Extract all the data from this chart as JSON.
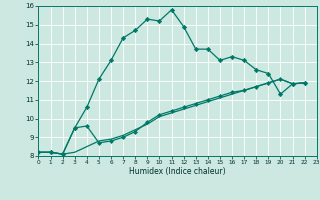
{
  "xlabel": "Humidex (Indice chaleur)",
  "xlim": [
    0,
    23
  ],
  "ylim": [
    8,
    16
  ],
  "xticks": [
    0,
    1,
    2,
    3,
    4,
    5,
    6,
    7,
    8,
    9,
    10,
    11,
    12,
    13,
    14,
    15,
    16,
    17,
    18,
    19,
    20,
    21,
    22,
    23
  ],
  "yticks": [
    8,
    9,
    10,
    11,
    12,
    13,
    14,
    15,
    16
  ],
  "bg_color": "#cce8e0",
  "line_color": "#007868",
  "series1_x": [
    0,
    1,
    2,
    3,
    4,
    5,
    6,
    7,
    8,
    9,
    10,
    11,
    12,
    13,
    14,
    15,
    16,
    17,
    18,
    19,
    20,
    21,
    22
  ],
  "series1_y": [
    8.2,
    8.2,
    8.1,
    9.5,
    10.6,
    12.1,
    13.1,
    14.3,
    14.7,
    15.3,
    15.2,
    15.8,
    14.9,
    13.7,
    13.7,
    13.1,
    13.3,
    13.1,
    12.6,
    12.4,
    11.3,
    11.85,
    11.9
  ],
  "series2_x": [
    0,
    1,
    2,
    3,
    4,
    5,
    6,
    7,
    8,
    9,
    10,
    11,
    12,
    13,
    14,
    15,
    16,
    17,
    18,
    19,
    20,
    21,
    22
  ],
  "series2_y": [
    8.2,
    8.2,
    8.1,
    9.5,
    9.6,
    8.7,
    8.8,
    9.0,
    9.3,
    9.8,
    10.2,
    10.4,
    10.6,
    10.8,
    11.0,
    11.2,
    11.4,
    11.5,
    11.7,
    11.9,
    12.1,
    11.85,
    11.9
  ],
  "series3_x": [
    0,
    1,
    2,
    3,
    4,
    5,
    6,
    7,
    8,
    9,
    10,
    11,
    12,
    13,
    14,
    15,
    16,
    17,
    18,
    19,
    20,
    21,
    22
  ],
  "series3_y": [
    8.2,
    8.2,
    8.1,
    8.2,
    8.5,
    8.8,
    8.9,
    9.1,
    9.4,
    9.7,
    10.1,
    10.3,
    10.5,
    10.7,
    10.9,
    11.1,
    11.3,
    11.5,
    11.7,
    11.9,
    12.1,
    11.85,
    11.9
  ]
}
